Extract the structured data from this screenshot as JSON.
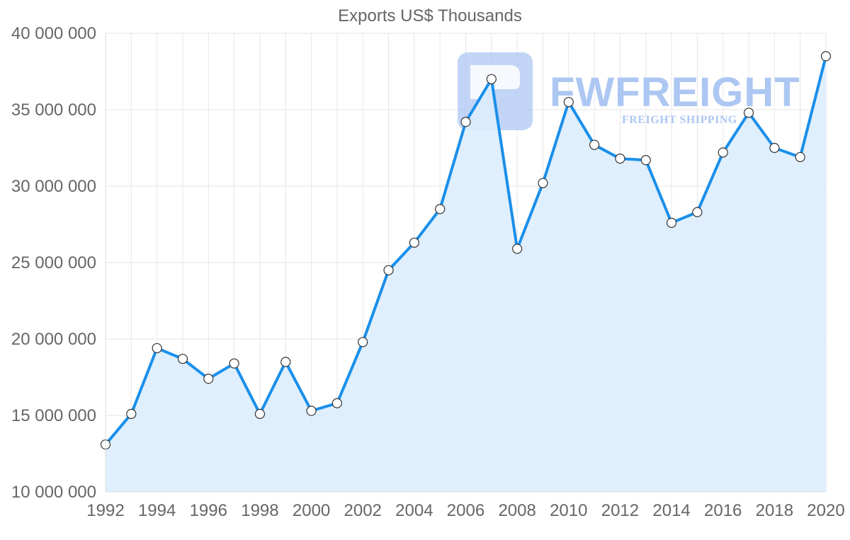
{
  "chart_data": {
    "type": "area",
    "title": "Exports US$ Thousands",
    "xlabel": "",
    "ylabel": "",
    "x": [
      1992,
      1993,
      1994,
      1995,
      1996,
      1997,
      1998,
      1999,
      2000,
      2001,
      2002,
      2003,
      2004,
      2005,
      2006,
      2007,
      2008,
      2009,
      2010,
      2011,
      2012,
      2013,
      2014,
      2015,
      2016,
      2017,
      2018,
      2019,
      2020
    ],
    "series": [
      {
        "name": "Exports US$ Thousands",
        "values": [
          13100000,
          15100000,
          19400000,
          18700000,
          17400000,
          18400000,
          15100000,
          18500000,
          15300000,
          15800000,
          19800000,
          24500000,
          26300000,
          28500000,
          34200000,
          37000000,
          25900000,
          30200000,
          35500000,
          32700000,
          31800000,
          31700000,
          27600000,
          28300000,
          32200000,
          34800000,
          32500000,
          31900000,
          38500000
        ],
        "line_color": "#1a8fea",
        "fill_color": "#dbedfd"
      }
    ],
    "ylim": [
      10000000,
      40000000
    ],
    "y_ticks": [
      10000000,
      15000000,
      20000000,
      25000000,
      30000000,
      35000000,
      40000000
    ],
    "y_tick_labels": [
      "10 000 000",
      "15 000 000",
      "20 000 000",
      "25 000 000",
      "30 000 000",
      "35 000 000",
      "40 000 000"
    ],
    "x_tick_labels": [
      "1992",
      "1994",
      "1996",
      "1998",
      "2000",
      "2002",
      "2004",
      "2006",
      "2008",
      "2010",
      "2012",
      "2014",
      "2016",
      "2018",
      "2020"
    ],
    "grid": true,
    "legend": "none"
  },
  "watermark": {
    "brand": "FWFREIGHT",
    "tagline": "FREIGHT SHIPPING",
    "color": "#adc7f3"
  }
}
